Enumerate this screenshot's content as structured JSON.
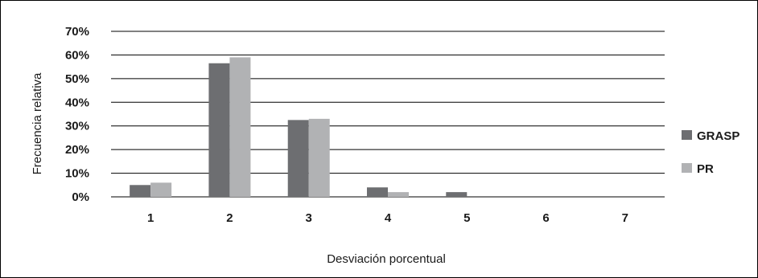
{
  "chart_data": {
    "type": "bar",
    "title": "",
    "xlabel": "Desviación porcentual",
    "ylabel": "Frecuencia relativa",
    "categories": [
      "1",
      "2",
      "3",
      "4",
      "5",
      "6",
      "7"
    ],
    "y_ticks": [
      "0%",
      "10%",
      "20%",
      "30%",
      "40%",
      "50%",
      "60%",
      "70%"
    ],
    "ylim": [
      0,
      70
    ],
    "grid": true,
    "legend_position": "right",
    "series": [
      {
        "name": "GRASP",
        "color": "#6d6e71",
        "values": [
          5,
          56.5,
          32.5,
          4,
          2,
          0,
          0
        ]
      },
      {
        "name": "PR",
        "color": "#b1b2b4",
        "values": [
          6,
          59,
          33,
          2,
          0,
          0,
          0
        ]
      }
    ]
  }
}
